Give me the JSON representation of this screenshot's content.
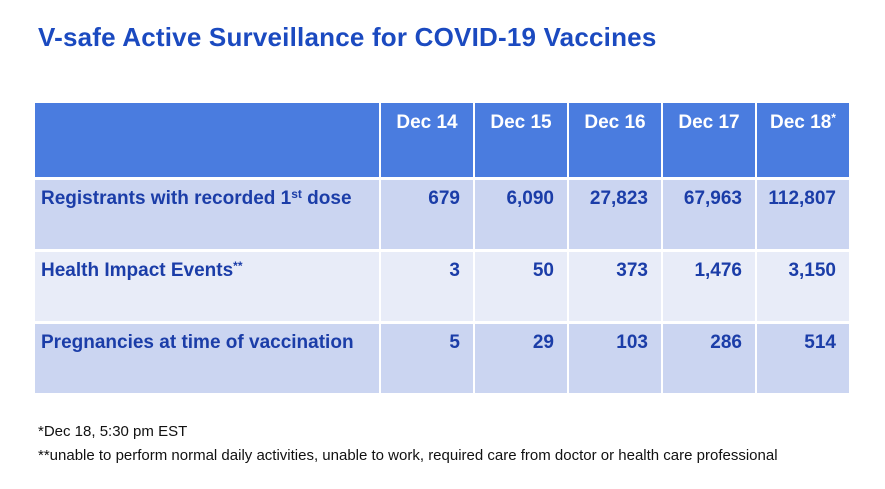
{
  "title": "V-safe Active Surveillance for COVID-19 Vaccines",
  "colors": {
    "title_color": "#1b4ac0",
    "header_bg": "#4a7cdf",
    "header_text": "#ffffff",
    "row_dark": "#cbd5f1",
    "row_light": "#e8ecf8",
    "cell_text": "#1b3da8",
    "footnote_color": "#111111"
  },
  "table": {
    "headers": [
      {
        "label": "Dec 14",
        "sup": ""
      },
      {
        "label": "Dec 15",
        "sup": ""
      },
      {
        "label": "Dec 16",
        "sup": ""
      },
      {
        "label": "Dec 17",
        "sup": ""
      },
      {
        "label": "Dec 18",
        "sup": "*"
      }
    ],
    "rows": [
      {
        "label": "Registrants with recorded 1",
        "label_sup": "st",
        "label_rest": " dose",
        "values": [
          "679",
          "6,090",
          "27,823",
          "67,963",
          "112,807"
        ]
      },
      {
        "label": "Health Impact Events",
        "label_sup": "**",
        "label_rest": "",
        "values": [
          "3",
          "50",
          "373",
          "1,476",
          "3,150"
        ]
      },
      {
        "label": "Pregnancies at time of vaccination",
        "label_sup": "",
        "label_rest": "",
        "values": [
          "5",
          "29",
          "103",
          "286",
          "514"
        ]
      }
    ]
  },
  "footnotes": [
    "*Dec 18, 5:30 pm EST",
    "**unable to perform normal daily activities, unable to work, required care from doctor or health care professional"
  ]
}
